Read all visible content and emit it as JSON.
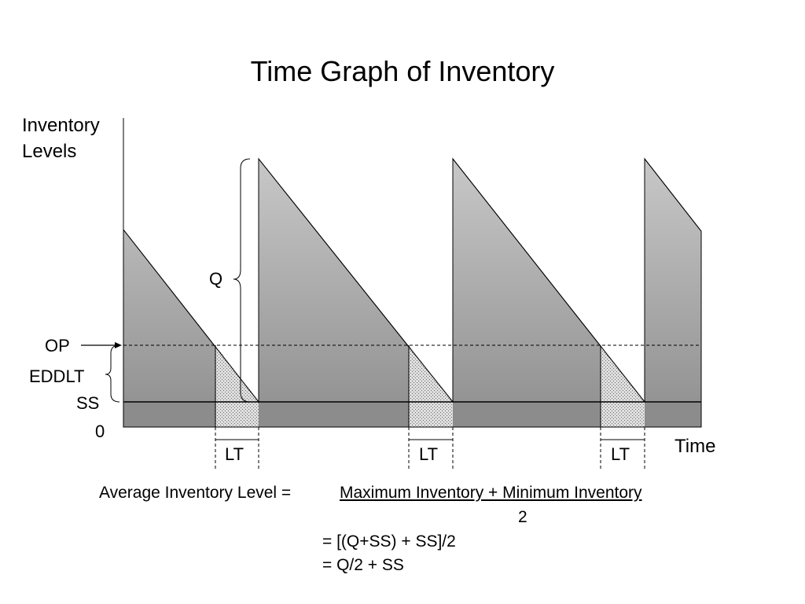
{
  "title": "Time Graph of Inventory",
  "axes": {
    "y_label_line1": "Inventory",
    "y_label_line2": "Levels",
    "x_label": "Time",
    "zero_label": "0"
  },
  "labels": {
    "q": "Q",
    "op": "OP",
    "eddlt": "EDDLT",
    "ss": "SS",
    "lead_times": [
      "LT",
      "LT",
      "LT"
    ]
  },
  "formula": {
    "lhs": "Average Inventory Level =",
    "numerator": "Maximum Inventory + Minimum Inventory",
    "denominator": "2",
    "step1": "= [(Q+SS) + SS]/2",
    "step2": "= Q/2 + SS"
  },
  "colors": {
    "gradient_top": "#c8c8c8",
    "gradient_bottom": "#8e8e8e",
    "safety_stock_band": "#8c8c8c",
    "lead_time_hatch": "#d9d9d9",
    "lines": "#000000"
  }
}
